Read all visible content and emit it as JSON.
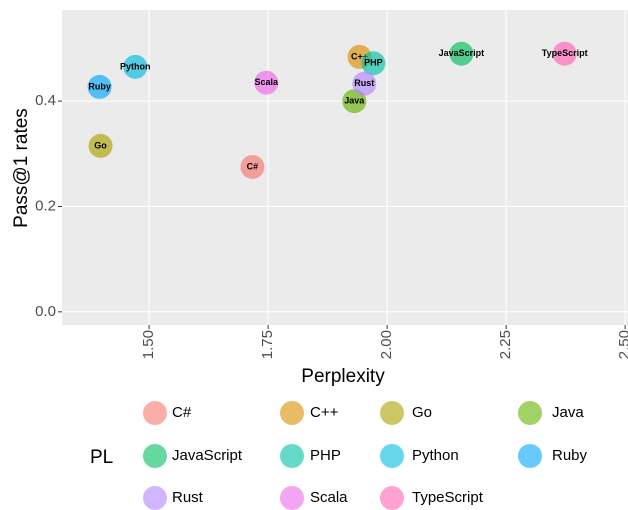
{
  "chart_data": {
    "type": "scatter",
    "x_label": "Perplexity",
    "y_label": "Pass@1 rates",
    "legend_title": "PL",
    "xlim": [
      1.317,
      2.506
    ],
    "ylim": [
      -0.025,
      0.573
    ],
    "xticks": [
      {
        "value": 1.5,
        "label": "1.50"
      },
      1.75,
      {
        "value": 2,
        "label": "2.00"
      },
      2.25,
      {
        "value": 2.5,
        "label": "2.50"
      }
    ],
    "yticks": [
      {
        "value": 0,
        "label": "0.0"
      },
      0.2,
      0.4
    ],
    "grid": true,
    "legend": "bottom",
    "series": [
      {
        "name": "C#",
        "color": "#F8766D",
        "x": [
          1.717
        ],
        "values": [
          0.275
        ]
      },
      {
        "name": "C++",
        "color": "#DB8E00",
        "x": [
          1.942
        ],
        "values": [
          0.484
        ]
      },
      {
        "name": "Go",
        "color": "#AEA200",
        "x": [
          1.398
        ],
        "values": [
          0.315
        ]
      },
      {
        "name": "Java",
        "color": "#64B200",
        "x": [
          1.931
        ],
        "values": [
          0.4
        ]
      },
      {
        "name": "JavaScript",
        "color": "#00BD5C",
        "x": [
          2.156
        ],
        "values": [
          0.49
        ]
      },
      {
        "name": "PHP",
        "color": "#00C1A7",
        "x": [
          1.971
        ],
        "values": [
          0.472
        ]
      },
      {
        "name": "Python",
        "color": "#00BADE",
        "x": [
          1.471
        ],
        "values": [
          0.465
        ]
      },
      {
        "name": "Ruby",
        "color": "#00A6FF",
        "x": [
          1.396
        ],
        "values": [
          0.427
        ]
      },
      {
        "name": "Rust",
        "color": "#B385FF",
        "x": [
          1.952
        ],
        "values": [
          0.433
        ]
      },
      {
        "name": "Scala",
        "color": "#EF67EB",
        "x": [
          1.746
        ],
        "values": [
          0.435
        ]
      },
      {
        "name": "TypeScript",
        "color": "#FF63B6",
        "x": [
          2.373
        ],
        "values": [
          0.49
        ]
      }
    ]
  }
}
